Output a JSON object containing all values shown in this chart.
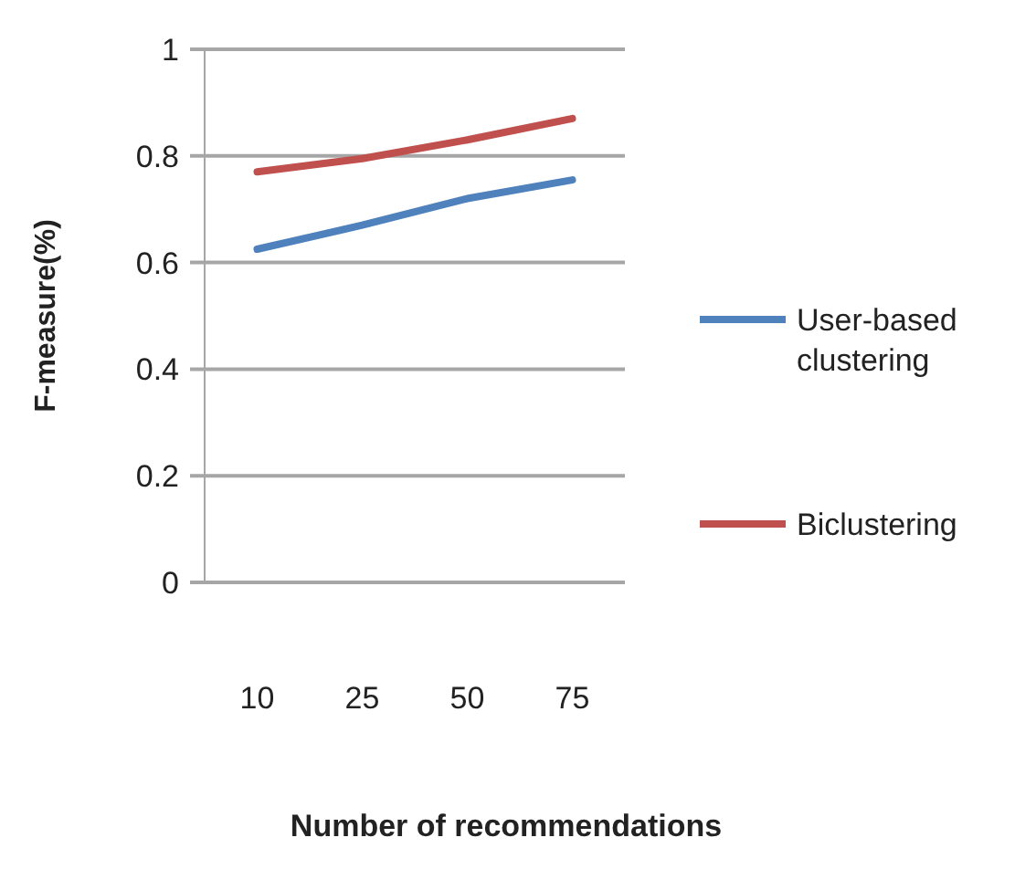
{
  "chart_data": {
    "type": "line",
    "xlabel": "Number of recommendations",
    "ylabel": "F-measure(%)",
    "categories": [
      "10",
      "25",
      "50",
      "75"
    ],
    "series": [
      {
        "name": "User-based clustering",
        "color": "#4f81bd",
        "values": [
          0.625,
          0.67,
          0.72,
          0.755
        ]
      },
      {
        "name": "Biclustering",
        "color": "#c0504d",
        "values": [
          0.77,
          0.795,
          0.83,
          0.87
        ]
      }
    ],
    "ylim": [
      0,
      1
    ],
    "yticks": [
      0,
      0.2,
      0.4,
      0.6,
      0.8,
      1
    ],
    "grid": "y",
    "legend": "right",
    "marker": "none"
  }
}
